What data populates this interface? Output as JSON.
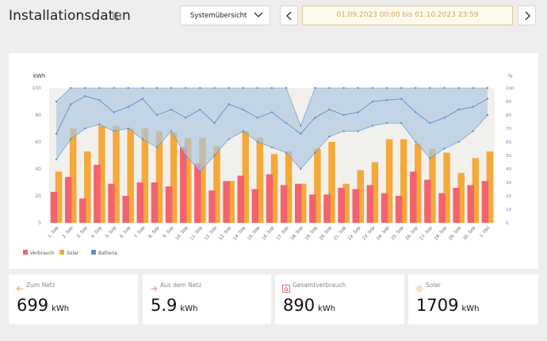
{
  "header": {
    "title": "Installationsdaten",
    "info_icon": "info-icon",
    "view_select": {
      "value": "Systemübersicht",
      "icon": "chevron-down-icon"
    },
    "prev_icon": "chevron-left-icon",
    "next_icon": "chevron-right-icon",
    "date_range": "01.09.2023 00:00 bis 01.10.2023 23:59"
  },
  "colors": {
    "verbrauch": "#f2636e",
    "solar": "#f5a93a",
    "batterie": "#5b8fc7",
    "batterie_band": "#a9c6e2"
  },
  "chart_data": {
    "type": "bar",
    "categories": [
      "1. Sep",
      "2. Sep",
      "3. Sep",
      "4. Sep",
      "5. Sep",
      "6. Sep",
      "7. Sep",
      "8. Sep",
      "9. Sep",
      "10. Sep",
      "11. Sep",
      "12. Sep",
      "13. Sep",
      "14. Sep",
      "15. Sep",
      "16. Sep",
      "17. Sep",
      "18. Sep",
      "19. Sep",
      "20. Sep",
      "21. Sep",
      "22. Sep",
      "23. Sep",
      "24. Sep",
      "25. Sep",
      "26. Sep",
      "27. Sep",
      "28. Sep",
      "29. Sep",
      "30. Sep",
      "1. Okt"
    ],
    "ylabel": "kWh",
    "ylabel_right": "%",
    "ylim": [
      0,
      100
    ],
    "yticks": [
      0,
      20,
      40,
      60,
      80,
      100
    ],
    "ylim_right": [
      0,
      100
    ],
    "yticks_right": [
      0,
      10,
      20,
      30,
      40,
      50,
      60,
      70,
      80,
      90,
      100
    ],
    "series": [
      {
        "name": "Verbrauch",
        "values": [
          23,
          34,
          18,
          43,
          29,
          20,
          30,
          30,
          27,
          56,
          44,
          24,
          31,
          35,
          25,
          36,
          28,
          29,
          21,
          21,
          26,
          25,
          28,
          22,
          20,
          38,
          32,
          22,
          26,
          28,
          31
        ]
      },
      {
        "name": "Solar",
        "values": [
          38,
          70,
          53,
          72,
          72,
          70,
          70,
          68,
          67,
          63,
          63,
          57,
          31,
          68,
          63,
          51,
          53,
          29,
          55,
          60,
          29,
          39,
          45,
          62,
          62,
          59,
          55,
          52,
          37,
          48,
          53
        ]
      },
      {
        "name": "Batterie",
        "min": [
          47,
          62,
          70,
          73,
          68,
          70,
          62,
          56,
          68,
          50,
          38,
          50,
          62,
          68,
          60,
          56,
          52,
          40,
          52,
          64,
          68,
          68,
          72,
          74,
          74,
          60,
          48,
          55,
          60,
          68,
          80
        ],
        "max": [
          90,
          100,
          100,
          100,
          100,
          100,
          100,
          100,
          100,
          100,
          100,
          100,
          100,
          100,
          100,
          100,
          100,
          72,
          100,
          100,
          100,
          100,
          100,
          100,
          100,
          100,
          100,
          100,
          100,
          100,
          100
        ],
        "avg": [
          66,
          88,
          94,
          91,
          82,
          86,
          92,
          80,
          84,
          78,
          84,
          74,
          88,
          84,
          78,
          82,
          74,
          66,
          78,
          84,
          80,
          82,
          90,
          91,
          92,
          82,
          74,
          78,
          84,
          86,
          92
        ]
      }
    ],
    "legend": "bottom-left",
    "grid": false
  },
  "tiles": [
    {
      "label": "Zum Netz",
      "value": "699",
      "unit": "kWh",
      "icon": "arrow-left-icon"
    },
    {
      "label": "Aus dem Netz",
      "value": "5.9",
      "unit": "kWh",
      "icon": "arrow-right-icon"
    },
    {
      "label": "Gesamtverbrauch",
      "value": "890",
      "unit": "kWh",
      "icon": "home-icon"
    },
    {
      "label": "Solar",
      "value": "1709",
      "unit": "kWh",
      "icon": "sun-icon"
    }
  ]
}
